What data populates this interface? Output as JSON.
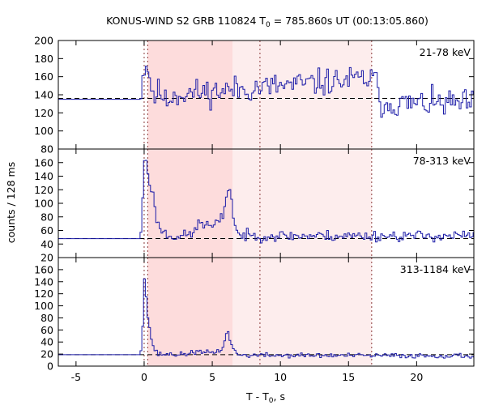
{
  "figure": {
    "title_main": "KONUS-WIND S2 GRB 110824 T",
    "title_sub": "0",
    "title_tail": " = 785.860s UT (00:13:05.860)",
    "ylabel": "counts / 128 ms",
    "xlabel_main": "T - T",
    "xlabel_sub": "0",
    "xlabel_tail": ", s"
  },
  "colors": {
    "curve": "#1c1ca8",
    "shade_strong": "#fddcdc",
    "shade_weak": "#fdeded",
    "marker": "#8b3a3a"
  },
  "chart_data": {
    "type": "line",
    "x_unit": "s",
    "bin_width": 0.128,
    "xlim": [
      -6.3,
      24.2
    ],
    "x_ticks": [
      -5,
      0,
      5,
      10,
      15,
      20
    ],
    "x_tick_labels": [
      "-5",
      "0",
      "5",
      "10",
      "15",
      "20"
    ],
    "shaded_intervals": [
      {
        "from": 0.26,
        "to": 6.5,
        "style": "strong"
      },
      {
        "from": 6.5,
        "to": 16.7,
        "style": "weak"
      }
    ],
    "vertical_markers": [
      0.0,
      0.26,
      8.5,
      16.7
    ],
    "panels": [
      {
        "label": "21-78 keV",
        "ylim": [
          80,
          200
        ],
        "y_ticks": [
          80,
          100,
          120,
          140,
          160,
          180,
          200
        ],
        "y_tick_labels": [
          "",
          "100",
          "120",
          "140",
          "160",
          "180",
          "200"
        ],
        "background": 136,
        "pre_level": 135,
        "pre_end": -0.3,
        "key_points": [
          [
            -0.3,
            138
          ],
          [
            -0.1,
            160
          ],
          [
            0.0,
            170
          ],
          [
            0.15,
            175
          ],
          [
            0.3,
            168
          ],
          [
            0.5,
            150
          ],
          [
            0.8,
            138
          ],
          [
            1.2,
            145
          ],
          [
            1.6,
            130
          ],
          [
            2.0,
            140
          ],
          [
            16.8,
            158
          ],
          [
            17.1,
            150
          ],
          [
            17.4,
            130
          ],
          [
            24.2,
            130
          ]
        ],
        "noise_amp": 13,
        "noise_seed": 11
      },
      {
        "label": "78-313 keV",
        "ylim": [
          20,
          180
        ],
        "y_ticks": [
          20,
          40,
          60,
          80,
          100,
          120,
          140,
          160
        ],
        "y_tick_labels": [
          "20",
          "40",
          "60",
          "80",
          "100",
          "120",
          "140",
          "160"
        ],
        "background": 48,
        "pre_level": 48,
        "pre_end": -0.3,
        "key_points": [
          [
            -0.3,
            45
          ],
          [
            -0.15,
            80
          ],
          [
            0.0,
            165
          ],
          [
            0.1,
            168
          ],
          [
            0.25,
            150
          ],
          [
            0.4,
            130
          ],
          [
            0.6,
            120
          ],
          [
            0.8,
            90
          ],
          [
            1.0,
            70
          ],
          [
            1.3,
            60
          ],
          [
            1.8,
            52
          ],
          [
            3.0,
            52
          ],
          [
            3.8,
            58
          ],
          [
            4.0,
            75
          ],
          [
            4.3,
            70
          ],
          [
            4.6,
            68
          ],
          [
            5.0,
            65
          ],
          [
            5.4,
            70
          ],
          [
            5.8,
            82
          ],
          [
            6.0,
            110
          ],
          [
            6.2,
            125
          ],
          [
            6.35,
            115
          ],
          [
            6.5,
            90
          ],
          [
            6.7,
            65
          ],
          [
            7.0,
            52
          ],
          [
            24.2,
            52
          ]
        ],
        "noise_amp": 7,
        "noise_seed": 23
      },
      {
        "label": "313-1184 keV",
        "ylim": [
          0,
          180
        ],
        "y_ticks": [
          0,
          20,
          40,
          60,
          80,
          100,
          120,
          140,
          160
        ],
        "y_tick_labels": [
          "0",
          "20",
          "40",
          "60",
          "80",
          "100",
          "120",
          "140",
          "160"
        ],
        "background": 19,
        "pre_level": 19,
        "pre_end": -0.3,
        "key_points": [
          [
            -0.3,
            18
          ],
          [
            -0.15,
            40
          ],
          [
            0.0,
            150
          ],
          [
            0.1,
            130
          ],
          [
            0.25,
            85
          ],
          [
            0.45,
            55
          ],
          [
            0.7,
            30
          ],
          [
            1.0,
            20
          ],
          [
            3.0,
            19
          ],
          [
            3.5,
            24
          ],
          [
            4.5,
            22
          ],
          [
            5.6,
            25
          ],
          [
            5.9,
            40
          ],
          [
            6.1,
            60
          ],
          [
            6.3,
            45
          ],
          [
            6.6,
            25
          ],
          [
            7.0,
            18
          ],
          [
            24.2,
            17
          ]
        ],
        "noise_amp": 3.5,
        "noise_seed": 37
      }
    ]
  }
}
